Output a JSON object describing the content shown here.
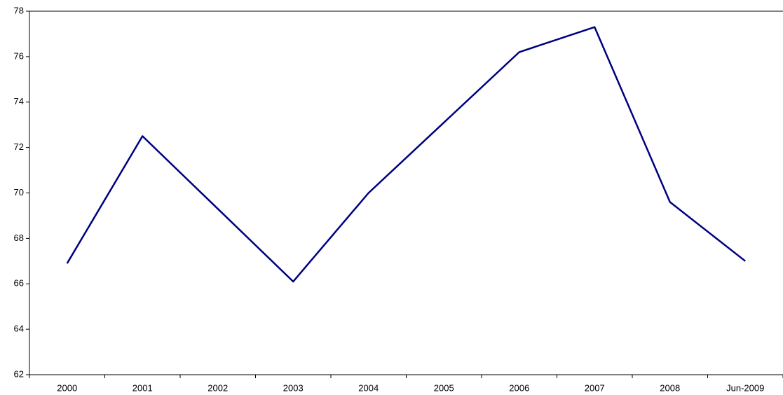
{
  "chart_data": {
    "type": "line",
    "categories": [
      "2000",
      "2001",
      "2002",
      "2003",
      "2004",
      "2005",
      "2006",
      "2007",
      "2008",
      "Jun-2009"
    ],
    "series": [
      {
        "name": null,
        "color": "#000080",
        "values": [
          66.9,
          72.5,
          69.3,
          66.1,
          70.0,
          73.1,
          76.2,
          77.3,
          69.6,
          67.0
        ]
      }
    ],
    "ylim": [
      62,
      78
    ],
    "yticks": [
      62,
      64,
      66,
      68,
      70,
      72,
      74,
      76,
      78
    ],
    "grid": false
  }
}
